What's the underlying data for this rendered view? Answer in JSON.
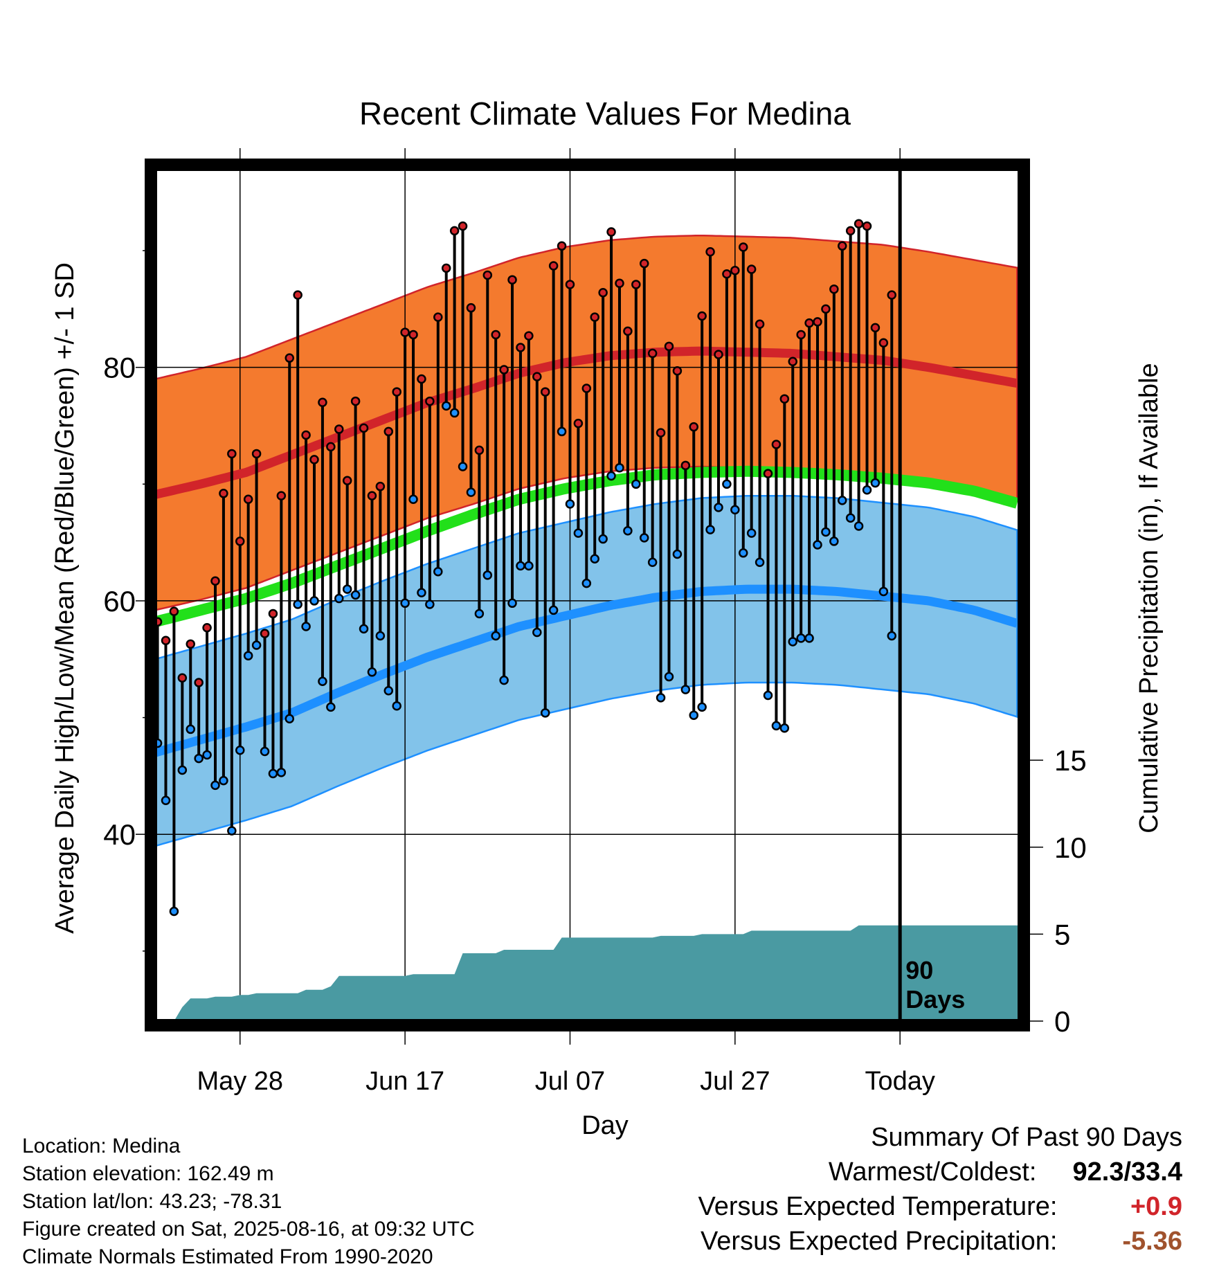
{
  "chart_data": {
    "type": "line",
    "title": "Recent Climate Values For Medina",
    "xlabel": "Day",
    "ylabel": "Average Daily High/Low/Mean (Red/Blue/Green) +/- 1 SD",
    "ylabel_right": "Cumulative Precipitation (in), If Available",
    "x_ticks": [
      "May 28",
      "Jun 17",
      "Jul 07",
      "Jul 27",
      "Today"
    ],
    "x_tick_days": [
      10,
      30,
      50,
      70,
      90
    ],
    "xlim": [
      -0.3,
      104.5
    ],
    "y_ticks": [
      40,
      60,
      80
    ],
    "ylim": [
      24,
      97
    ],
    "y_right_ticks": [
      0,
      5,
      10,
      15
    ],
    "y_right_lim": [
      0,
      49
    ],
    "days_label": "90\nDays",
    "grid": true,
    "colors": {
      "high_band": "#f47a2e",
      "high_line": "#d1242a",
      "low_band": "#82c3ea",
      "low_line": "#1e90ff",
      "mean_line": "#22e01a",
      "precip": "#4a9aa2",
      "high_dot": "#d1242a",
      "low_dot": "#1e90ff"
    },
    "normal_high": [
      69.1,
      70.0,
      71.0,
      72.5,
      74.0,
      75.5,
      77.0,
      78.2,
      79.5,
      80.4,
      81.0,
      81.3,
      81.4,
      81.3,
      81.2,
      80.9,
      80.6,
      80.0,
      79.3,
      78.6
    ],
    "normal_low": [
      47.0,
      48.1,
      49.2,
      50.4,
      52.1,
      53.7,
      55.2,
      56.5,
      57.8,
      58.7,
      59.6,
      60.3,
      60.8,
      61.0,
      61.0,
      60.8,
      60.4,
      60.0,
      59.2,
      58.0
    ],
    "normal_mean": [
      58.2,
      59.2,
      60.2,
      61.5,
      63.0,
      64.5,
      66.0,
      67.4,
      68.7,
      69.6,
      70.3,
      70.8,
      71.0,
      71.1,
      71.0,
      70.8,
      70.5,
      70.1,
      69.4,
      68.3
    ],
    "normal_sd_high": 9.9,
    "normal_sd_low": 8.0,
    "highs": [
      58.2,
      56.6,
      59.1,
      53.4,
      56.3,
      53.0,
      57.7,
      61.7,
      69.2,
      72.6,
      65.1,
      68.7,
      72.6,
      57.2,
      58.9,
      69.0,
      80.8,
      86.2,
      74.2,
      72.1,
      77.0,
      73.2,
      74.7,
      70.3,
      77.1,
      74.8,
      69.0,
      69.8,
      74.5,
      77.9,
      83.0,
      82.8,
      79.0,
      77.1,
      84.3,
      88.5,
      91.7,
      92.1,
      85.1,
      72.9,
      87.9,
      82.8,
      79.8,
      87.5,
      81.7,
      82.7,
      79.2,
      77.9,
      88.7,
      90.4,
      87.1,
      75.2,
      78.2,
      84.3,
      86.4,
      91.6,
      87.2,
      83.1,
      87.1,
      88.9,
      81.2,
      74.4,
      81.8,
      79.7,
      71.6,
      74.9,
      84.4,
      89.9,
      81.1,
      88.0,
      88.3,
      90.3,
      88.4,
      83.7,
      70.9,
      73.4,
      77.3,
      80.5,
      82.8,
      83.8,
      83.9,
      85.0,
      86.7,
      90.4,
      91.7,
      92.3,
      92.1,
      83.4,
      82.1,
      86.2
    ],
    "lows": [
      47.8,
      42.9,
      33.4,
      45.5,
      49.0,
      46.5,
      46.8,
      44.2,
      44.6,
      40.3,
      47.2,
      55.3,
      56.2,
      47.1,
      45.2,
      45.3,
      49.9,
      59.7,
      57.8,
      60.0,
      53.1,
      50.9,
      60.2,
      61.0,
      60.5,
      57.6,
      53.9,
      57.0,
      52.3,
      51.0,
      59.8,
      68.7,
      60.7,
      59.7,
      62.5,
      76.7,
      76.1,
      71.5,
      69.3,
      58.9,
      62.2,
      57.0,
      53.2,
      59.8,
      63.0,
      63.0,
      57.3,
      50.4,
      59.2,
      74.5,
      68.3,
      65.8,
      61.5,
      63.6,
      65.3,
      70.7,
      71.4,
      66.0,
      70.0,
      65.4,
      63.3,
      51.7,
      53.5,
      64.0,
      52.4,
      50.2,
      50.9,
      66.1,
      68.0,
      70.0,
      67.8,
      64.1,
      65.8,
      63.3,
      51.9,
      49.3,
      49.1,
      56.5,
      56.8,
      56.8,
      64.8,
      65.9,
      65.1,
      68.6,
      67.1,
      66.4,
      69.5,
      70.1,
      60.8,
      57.0
    ],
    "precip_cum": [
      0.0,
      0.0,
      0.0,
      0.8,
      1.3,
      1.3,
      1.3,
      1.4,
      1.4,
      1.4,
      1.5,
      1.5,
      1.6,
      1.6,
      1.6,
      1.6,
      1.6,
      1.6,
      1.8,
      1.8,
      1.8,
      2.0,
      2.6,
      2.6,
      2.6,
      2.6,
      2.6,
      2.6,
      2.6,
      2.6,
      2.6,
      2.7,
      2.7,
      2.7,
      2.7,
      2.7,
      2.7,
      3.9,
      3.9,
      3.9,
      3.9,
      3.9,
      4.1,
      4.1,
      4.1,
      4.1,
      4.1,
      4.1,
      4.1,
      4.8,
      4.8,
      4.8,
      4.8,
      4.8,
      4.8,
      4.8,
      4.8,
      4.8,
      4.8,
      4.8,
      4.8,
      4.9,
      4.9,
      4.9,
      4.9,
      4.9,
      5.0,
      5.0,
      5.0,
      5.0,
      5.0,
      5.0,
      5.2,
      5.2,
      5.2,
      5.2,
      5.2,
      5.2,
      5.2,
      5.2,
      5.2,
      5.2,
      5.2,
      5.2,
      5.2,
      5.5,
      5.5,
      5.5,
      5.5,
      5.5,
      5.5
    ]
  },
  "info": {
    "location": "Location: Medina",
    "elevation": "Station elevation: 162.49 m",
    "latlon": "Station lat/lon: 43.23; -78.31",
    "created": "Figure created on Sat, 2025-08-16, at 09:32 UTC",
    "normals": "Climate Normals Estimated From 1990-2020"
  },
  "summary": {
    "title": "Summary Of Past 90 Days",
    "warm_cold_label": "Warmest/Coldest:",
    "warm_cold_value": "92.3/33.4",
    "temp_label": "Versus Expected Temperature:",
    "temp_value": "+0.9",
    "temp_color": "#d1242a",
    "precip_label": "Versus Expected Precipitation:",
    "precip_value": "-5.36",
    "precip_color": "#a0522d"
  }
}
